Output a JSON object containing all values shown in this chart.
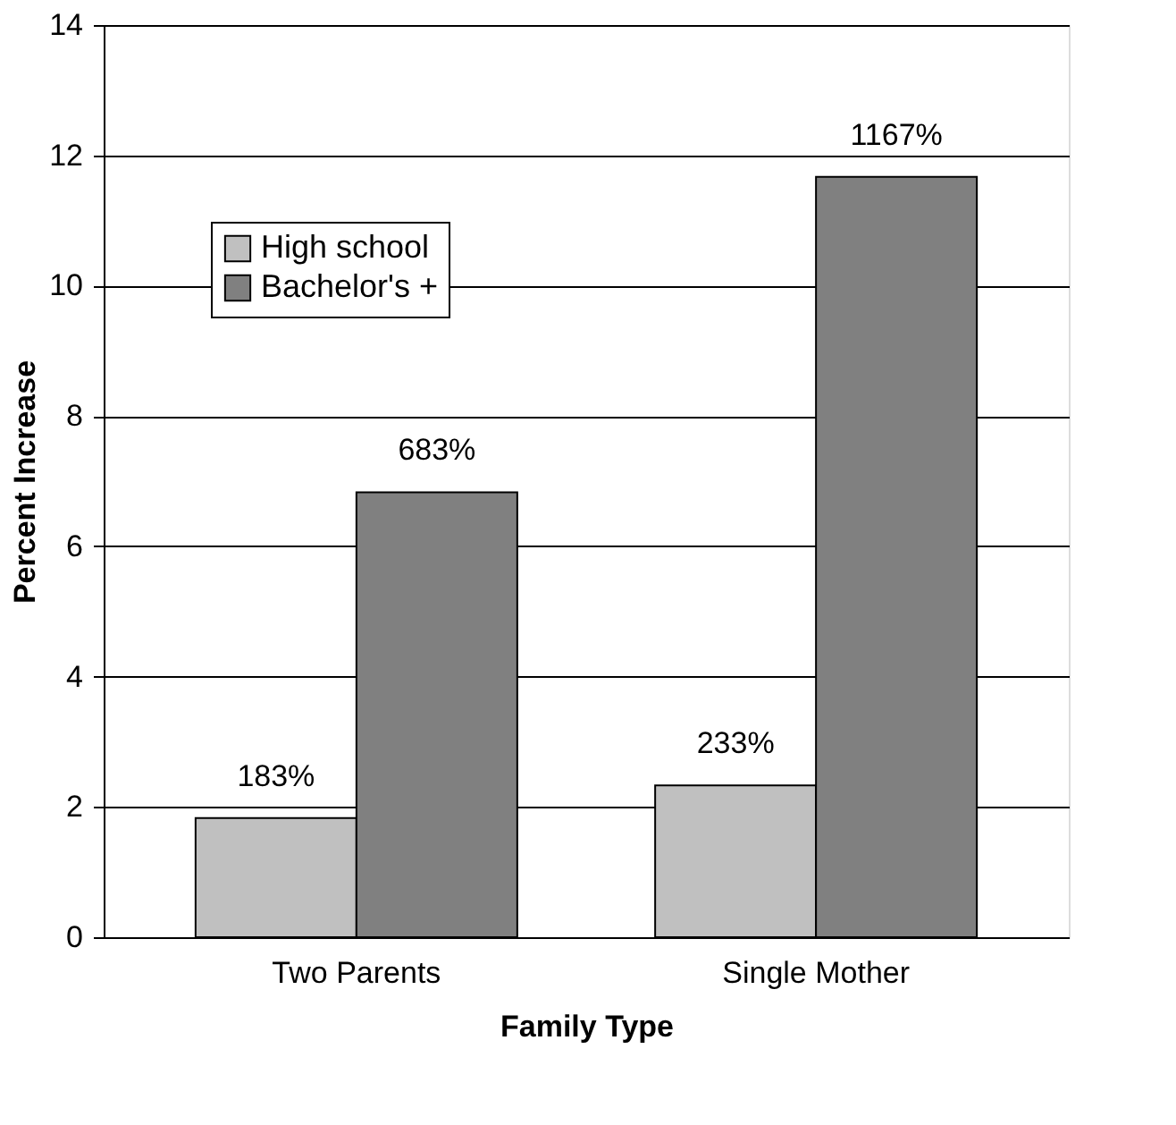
{
  "chart_data": {
    "type": "bar",
    "xlabel": "Family Type",
    "ylabel": "Percent Increase",
    "categories": [
      "Two Parents",
      "Single Mother"
    ],
    "series": [
      {
        "name": "High school",
        "color": "#c0c0c0",
        "values": [
          1.83,
          2.33
        ],
        "value_labels": [
          "183%",
          "233%"
        ]
      },
      {
        "name": "Bachelor's +",
        "color": "#808080",
        "values": [
          6.83,
          11.67
        ],
        "value_labels": [
          "683%",
          "1167%"
        ]
      }
    ],
    "ylim": [
      0,
      14
    ],
    "yticks": [
      0,
      2,
      4,
      6,
      8,
      10,
      12,
      14
    ],
    "grid": "y",
    "legend": "top left"
  }
}
